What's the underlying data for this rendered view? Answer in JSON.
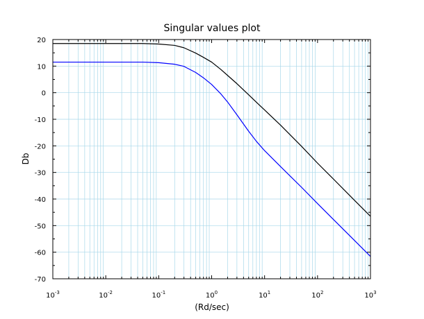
{
  "chart_data": {
    "type": "line",
    "title": "Singular values plot",
    "xlabel": "(Rd/sec)",
    "ylabel": "Db",
    "xscale": "log",
    "xlim": [
      0.001,
      1000
    ],
    "ylim": [
      -70,
      20
    ],
    "grid": true,
    "grid_color": "#a8d8ea",
    "x_ticks": [
      {
        "base": "10",
        "exp": "-3"
      },
      {
        "base": "10",
        "exp": "-2"
      },
      {
        "base": "10",
        "exp": "-1"
      },
      {
        "base": "10",
        "exp": "0"
      },
      {
        "base": "10",
        "exp": "1"
      },
      {
        "base": "10",
        "exp": "2"
      },
      {
        "base": "10",
        "exp": "3"
      }
    ],
    "y_ticks": [
      "20",
      "10",
      "0",
      "-10",
      "-20",
      "-30",
      "-40",
      "-50",
      "-60",
      "-70"
    ],
    "series": [
      {
        "color": "#000000",
        "x": [
          0.001,
          0.01,
          0.05,
          0.1,
          0.2,
          0.3,
          0.5,
          0.7,
          1,
          1.5,
          2,
          3,
          5,
          7,
          10,
          20,
          50,
          100,
          200,
          500,
          1000
        ],
        "y": [
          18.5,
          18.5,
          18.5,
          18.3,
          17.8,
          16.9,
          14.9,
          13.3,
          11.5,
          8.7,
          6.5,
          3.4,
          -0.8,
          -3.6,
          -6.5,
          -12.2,
          -20.2,
          -26.5,
          -32.5,
          -40.5,
          -46.5
        ]
      },
      {
        "color": "#0000ff",
        "x": [
          0.001,
          0.01,
          0.05,
          0.1,
          0.2,
          0.3,
          0.5,
          0.7,
          1,
          1.5,
          2,
          3,
          5,
          7,
          10,
          20,
          50,
          100,
          200,
          500,
          1000
        ],
        "y": [
          11.5,
          11.5,
          11.5,
          11.3,
          10.7,
          9.9,
          7.6,
          5.6,
          3.1,
          -0.5,
          -3.5,
          -8.3,
          -14.5,
          -18.3,
          -21.8,
          -27.8,
          -35.6,
          -41.7,
          -47.7,
          -55.6,
          -61.6
        ]
      }
    ]
  }
}
